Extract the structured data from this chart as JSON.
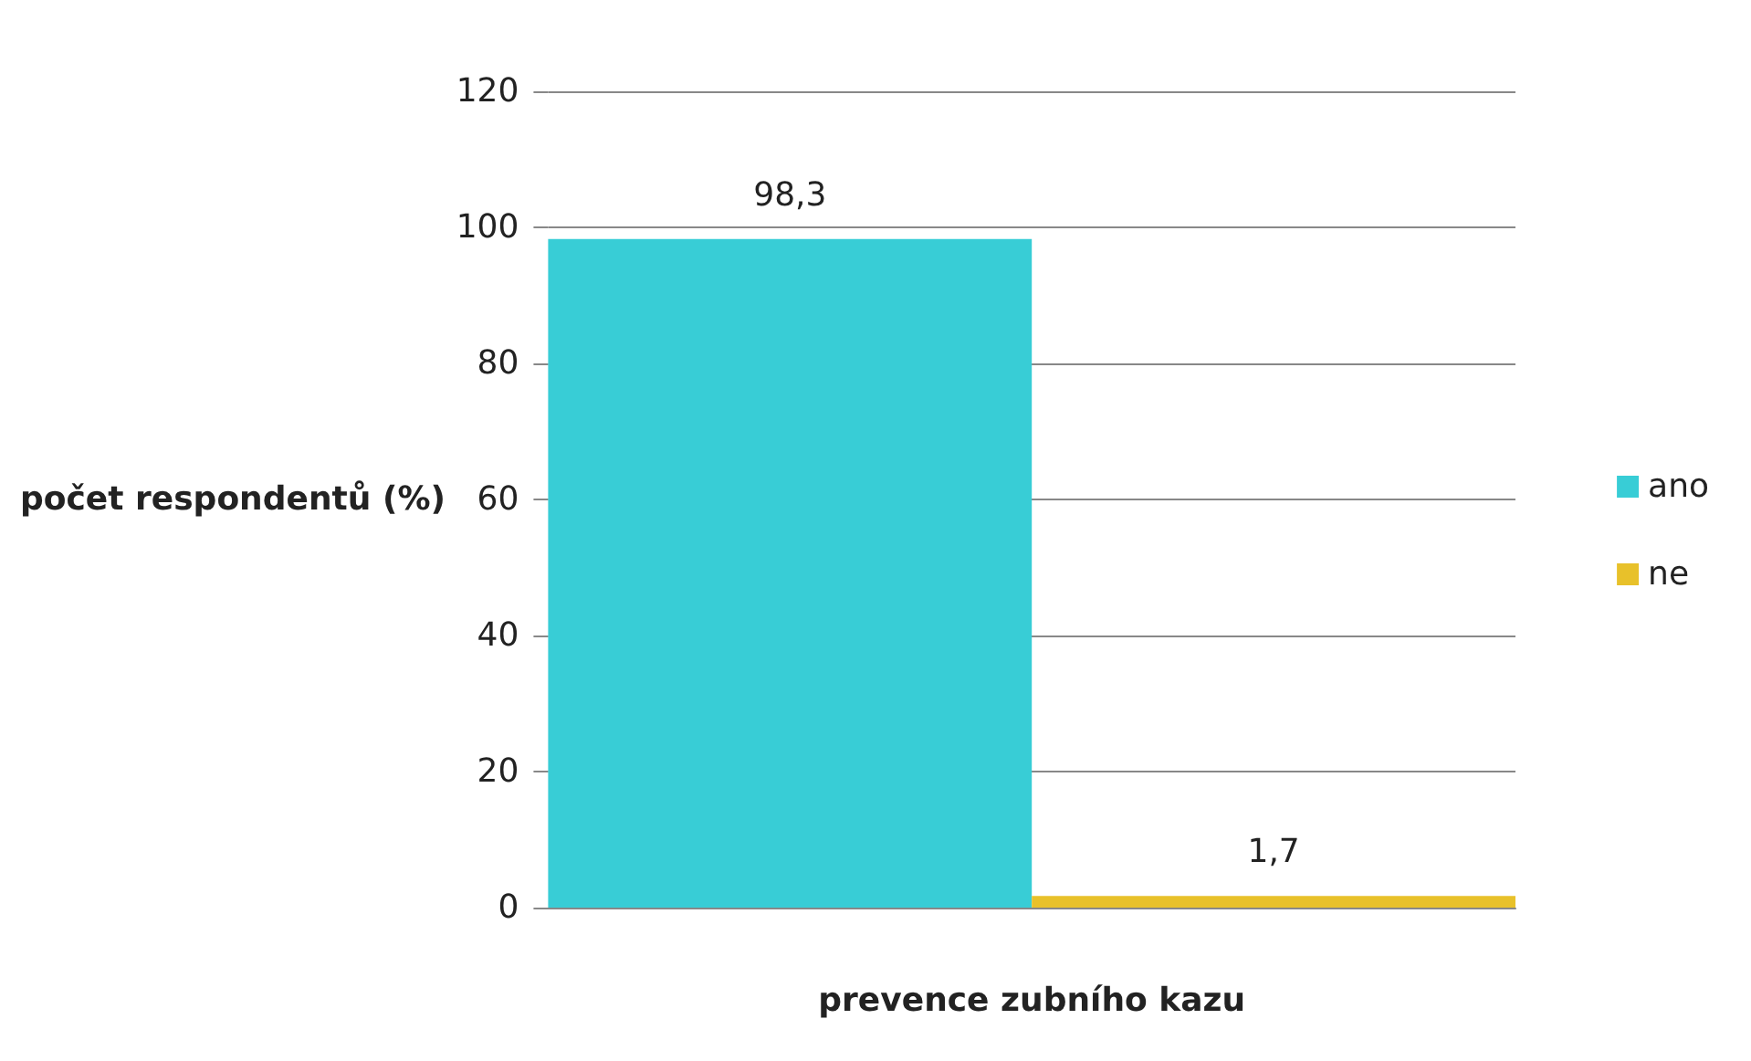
{
  "chart_data": {
    "type": "bar",
    "ylabel": "počet respondentů (%)",
    "xlabel": "prevence zubního kazu",
    "categories": [
      null
    ],
    "series": [
      {
        "name": "ano",
        "color": "#38cdd6",
        "values": [
          98.3
        ],
        "value_labels": [
          "98,3"
        ]
      },
      {
        "name": "ne",
        "color": "#e8c12a",
        "values": [
          1.7
        ],
        "value_labels": [
          "1,7"
        ]
      }
    ],
    "ylim": [
      0,
      120
    ],
    "yticks": [
      0,
      20,
      40,
      60,
      80,
      100,
      120
    ],
    "grid": "y",
    "legend": "right"
  }
}
